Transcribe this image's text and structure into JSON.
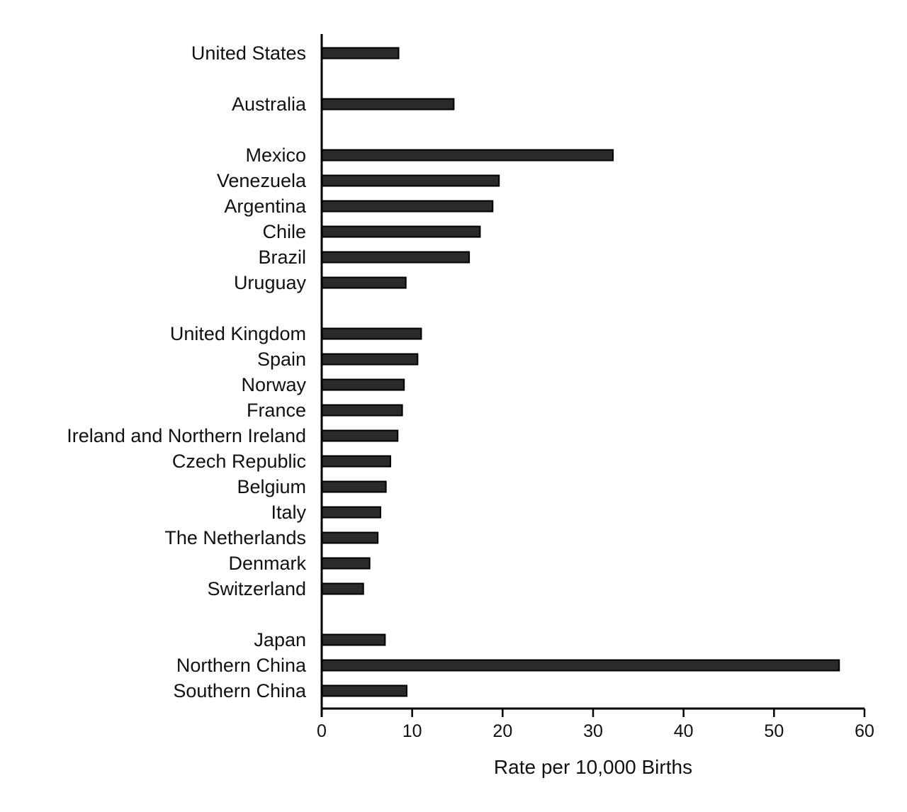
{
  "chart_data": {
    "type": "bar",
    "orientation": "horizontal",
    "title": "",
    "xlabel": "Rate per 10,000 Births",
    "ylabel": "",
    "xlim": [
      0,
      60
    ],
    "xticks": [
      0,
      10,
      20,
      30,
      40,
      50,
      60
    ],
    "grid": false,
    "groups": [
      {
        "categories": [
          "United States"
        ],
        "values": [
          8.5
        ]
      },
      {
        "categories": [
          "Australia"
        ],
        "values": [
          14.6
        ]
      },
      {
        "categories": [
          "Mexico",
          "Venezuela",
          "Argentina",
          "Chile",
          "Brazil",
          "Uruguay"
        ],
        "values": [
          32.2,
          19.6,
          18.9,
          17.5,
          16.3,
          9.3
        ]
      },
      {
        "categories": [
          "United Kingdom",
          "Spain",
          "Norway",
          "France",
          "Ireland and Northern Ireland",
          "Czech Republic",
          "Belgium",
          "Italy",
          "The Netherlands",
          "Denmark",
          "Switzerland"
        ],
        "values": [
          11.0,
          10.6,
          9.1,
          8.9,
          8.4,
          7.6,
          7.1,
          6.5,
          6.2,
          5.3,
          4.6
        ]
      },
      {
        "categories": [
          "Japan",
          "Northern China",
          "Southern China"
        ],
        "values": [
          7.0,
          57.2,
          9.4
        ]
      }
    ]
  }
}
